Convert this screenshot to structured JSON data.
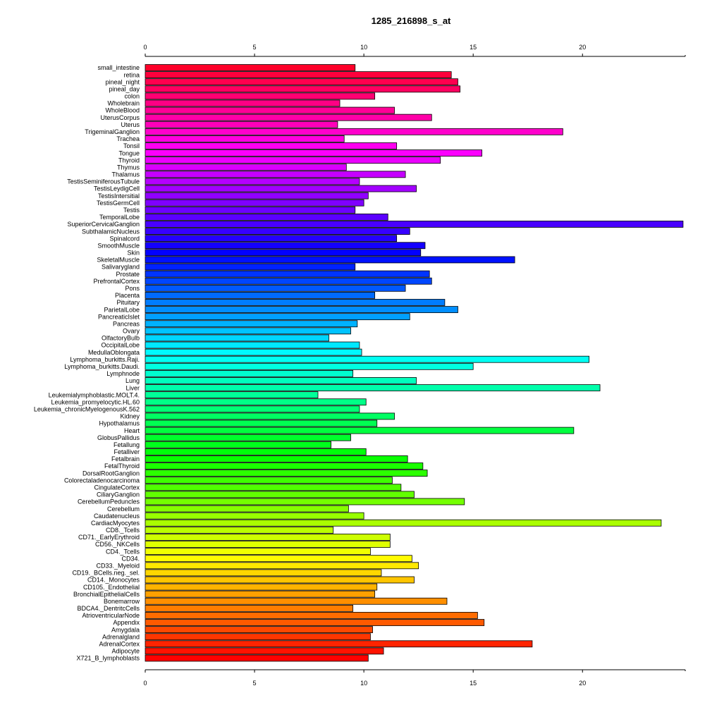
{
  "chart_data": {
    "type": "bar",
    "orientation": "horizontal",
    "title": "1285_216898_s_at",
    "xlabel": "",
    "ylabel": "",
    "xlim": [
      0,
      24.7
    ],
    "x_ticks": [
      "0",
      "5",
      "10",
      "15",
      "20"
    ],
    "grid": false,
    "categories": [
      "small_intestine",
      "retina",
      "pineal_night",
      "pineal_day",
      "colon",
      "Wholebrain",
      "WholeBlood",
      "UterusCorpus",
      "Uterus",
      "TrigeminalGanglion",
      "Trachea",
      "Tonsil",
      "Tongue",
      "Thyroid",
      "Thymus",
      "Thalamus",
      "TestisSeminiferousTubule",
      "TestisLeydigCell",
      "TestisIntersitial",
      "TestisGermCell",
      "Testis",
      "TemporalLobe",
      "SuperiorCervicalGanglion",
      "SubthalamicNucleus",
      "Spinalcord",
      "SmoothMuscle",
      "Skin",
      "SkeletalMuscle",
      "Salivarygland",
      "Prostate",
      "PrefrontalCortex",
      "Pons",
      "Placenta",
      "Pituitary",
      "ParietalLobe",
      "PancreaticIslet",
      "Pancreas",
      "Ovary",
      "OlfactoryBulb",
      "OccipitalLobe",
      "MedullaOblongata",
      "Lymphoma_burkitts.Raji.",
      "Lymphoma_burkitts.Daudi.",
      "Lymphnode",
      "Lung",
      "Liver",
      "Leukemialymphoblastic.MOLT.4.",
      "Leukemia_promyelocytic.HL.60",
      "Leukemia_chronicMyelogenousK.562",
      "Kidney",
      "Hypothalamus",
      "Heart",
      "GlobusPallidus",
      "Fetallung",
      "Fetalliver",
      "Fetalbrain",
      "FetalThyroid",
      "DorsalRootGanglion",
      "Colorectaladenocarcinoma",
      "CingulateCortex",
      "CiliaryGanglion",
      "CerebellumPeduncles",
      "Cerebellum",
      "Caudatenucleus",
      "CardiacMyocytes",
      "CD8._Tcells",
      "CD71._EarlyErythroid",
      "CD56._NKCells",
      "CD4._Tcells",
      "CD34.",
      "CD33._Myeloid",
      "CD19._BCells.neg._sel.",
      "CD14._Monocytes",
      "CD105._Endothelial",
      "BronchialEpithelialCells",
      "Bonemarrow",
      "BDCA4._DentritcCells",
      "AtrioventricularNode",
      "Appendix",
      "Amygdala",
      "Adrenalgland",
      "AdrenalCortex",
      "Adipocyte",
      "X721_B_lymphoblasts"
    ],
    "values": [
      9.6,
      14.0,
      14.3,
      14.4,
      10.5,
      8.9,
      11.4,
      13.1,
      8.8,
      19.1,
      9.1,
      11.5,
      15.4,
      13.5,
      9.2,
      11.9,
      9.8,
      12.4,
      10.2,
      10.0,
      9.6,
      11.1,
      24.6,
      12.1,
      11.5,
      12.8,
      12.6,
      16.9,
      9.6,
      13.0,
      13.1,
      11.9,
      10.5,
      13.7,
      14.3,
      12.1,
      9.7,
      9.4,
      8.4,
      9.8,
      9.9,
      20.3,
      15.0,
      9.5,
      12.4,
      20.8,
      7.9,
      10.1,
      9.8,
      11.4,
      10.6,
      19.6,
      9.4,
      8.5,
      10.1,
      12.0,
      12.7,
      12.9,
      11.3,
      11.7,
      12.3,
      14.6,
      9.3,
      10.0,
      23.6,
      8.6,
      11.2,
      11.2,
      10.3,
      12.2,
      12.5,
      10.8,
      12.3,
      10.6,
      10.5,
      13.8,
      9.5,
      15.2,
      15.5,
      10.4,
      10.3,
      17.7,
      10.9,
      10.2
    ]
  }
}
